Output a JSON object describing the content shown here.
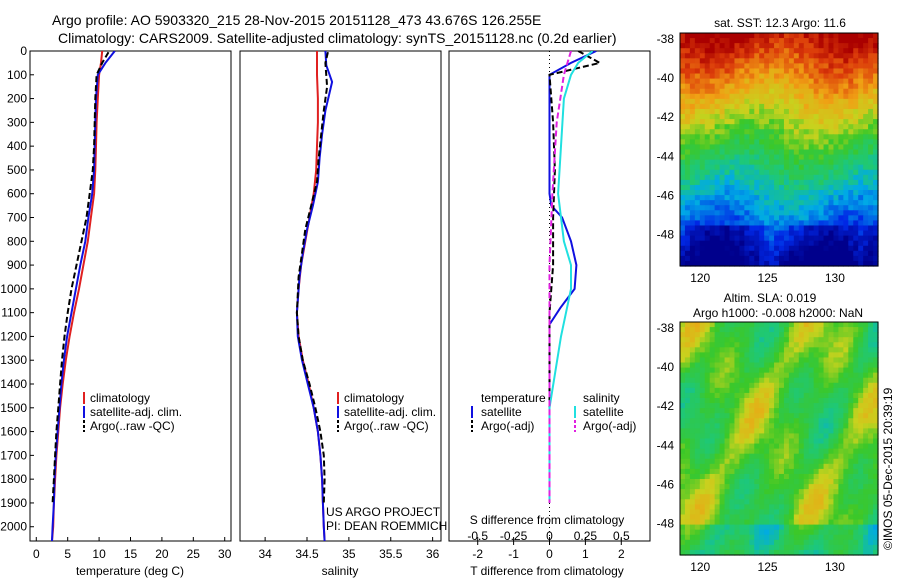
{
  "header": {
    "line1": "Argo profile: AO 5903320_215 28-Nov-2015 20151128_473 43.676S 126.255E",
    "line2": "Climatology: CARS2009. Satellite-adjusted climatology: synTS_20151128.nc (0.2d earlier)"
  },
  "colors": {
    "climatology": "#e02020",
    "satellite": "#1010e0",
    "argo": "#000000",
    "satellite_salinity": "#20e0e0",
    "argo_salinity": "#e020e0"
  },
  "chart_data": [
    {
      "id": "temperature",
      "type": "line",
      "xlabel": "temperature (deg C)",
      "ylabel": "",
      "xlim": [
        -1,
        31
      ],
      "ylim": [
        2060,
        0
      ],
      "xticks": [
        0,
        5,
        10,
        15,
        20,
        25,
        30
      ],
      "yticks": [
        0,
        100,
        200,
        300,
        400,
        500,
        600,
        700,
        800,
        900,
        1000,
        1100,
        1200,
        1300,
        1400,
        1500,
        1600,
        1700,
        1800,
        1900,
        2000
      ],
      "legend": [
        "climatology",
        "satellite-adj. clim.",
        "Argo(..raw -QC)"
      ],
      "series": [
        {
          "name": "climatology",
          "style": "solid",
          "color": "#e02020",
          "x": [
            10.5,
            10.3,
            10.0,
            9.8,
            9.6,
            9.5,
            9.4,
            9.2,
            8.7,
            8.2,
            7.5,
            6.8,
            6.0,
            5.3,
            4.7,
            4.2,
            3.8,
            3.5,
            3.2,
            3.0,
            2.8,
            2.7,
            2.6,
            2.5
          ],
          "y": [
            0,
            50,
            100,
            200,
            300,
            400,
            500,
            600,
            700,
            800,
            900,
            1000,
            1100,
            1200,
            1300,
            1400,
            1500,
            1600,
            1700,
            1800,
            1900,
            2000,
            2030,
            2060
          ]
        },
        {
          "name": "satellite-adj. clim.",
          "style": "solid",
          "color": "#1010e0",
          "x": [
            12.5,
            11.0,
            9.8,
            9.5,
            9.4,
            9.3,
            9.2,
            8.9,
            8.3,
            7.8,
            7.0,
            6.3,
            5.6,
            4.9,
            4.4,
            4.0,
            3.7,
            3.4,
            3.1,
            2.9,
            2.8,
            2.6,
            2.5
          ],
          "y": [
            0,
            50,
            100,
            200,
            300,
            400,
            500,
            600,
            700,
            800,
            900,
            1000,
            1100,
            1200,
            1300,
            1400,
            1500,
            1600,
            1700,
            1800,
            1900,
            2000,
            2060
          ]
        },
        {
          "name": "Argo(..raw -QC)",
          "style": "dashed",
          "color": "#000000",
          "x": [
            11.5,
            10.5,
            9.6,
            9.4,
            9.3,
            9.2,
            9.0,
            8.5,
            8.0,
            7.2,
            6.4,
            5.6,
            5.0,
            4.5,
            4.1,
            3.8,
            3.5,
            3.2,
            3.0,
            2.8,
            2.6
          ],
          "y": [
            5,
            50,
            100,
            200,
            300,
            400,
            500,
            600,
            700,
            800,
            900,
            1000,
            1100,
            1200,
            1300,
            1400,
            1500,
            1600,
            1700,
            1800,
            1900
          ]
        }
      ]
    },
    {
      "id": "salinity",
      "type": "line",
      "xlabel": "salinity",
      "ylabel": "",
      "xlim": [
        33.7,
        36.1
      ],
      "ylim": [
        2060,
        0
      ],
      "xticks": [
        34,
        34.5,
        35,
        35.5,
        36
      ],
      "legend": [
        "climatology",
        "satellite-adj. clim.",
        "Argo(..raw -QC)"
      ],
      "series": [
        {
          "name": "climatology",
          "style": "solid",
          "color": "#e02020",
          "x": [
            34.62,
            34.62,
            34.63,
            34.63,
            34.62,
            34.61,
            34.58,
            34.53,
            34.48,
            34.43,
            34.4,
            34.38,
            34.4,
            34.45,
            34.52,
            34.58,
            34.63,
            34.66,
            34.68,
            34.69,
            34.7,
            34.71
          ],
          "y": [
            0,
            100,
            200,
            300,
            400,
            500,
            600,
            700,
            800,
            900,
            1000,
            1100,
            1200,
            1300,
            1400,
            1500,
            1600,
            1700,
            1800,
            1900,
            2000,
            2060
          ]
        },
        {
          "name": "satellite-adj. clim.",
          "style": "solid",
          "color": "#1010e0",
          "x": [
            34.72,
            34.73,
            34.8,
            34.72,
            34.68,
            34.65,
            34.63,
            34.57,
            34.5,
            34.45,
            34.41,
            34.38,
            34.39,
            34.44,
            34.51,
            34.58,
            34.63,
            34.66,
            34.68,
            34.69,
            34.7,
            34.71
          ],
          "y": [
            0,
            60,
            130,
            250,
            350,
            450,
            550,
            650,
            750,
            850,
            950,
            1100,
            1200,
            1300,
            1400,
            1500,
            1600,
            1700,
            1800,
            1900,
            2000,
            2060
          ]
        },
        {
          "name": "Argo(..raw -QC)",
          "style": "dashed",
          "color": "#000000",
          "x": [
            34.75,
            34.72,
            34.74,
            34.7,
            34.67,
            34.64,
            34.62,
            34.55,
            34.48,
            34.44,
            34.4,
            34.38,
            34.4,
            34.45,
            34.53,
            34.6,
            34.66,
            34.7,
            34.71,
            34.7
          ],
          "y": [
            5,
            50,
            150,
            250,
            350,
            450,
            550,
            650,
            750,
            850,
            950,
            1100,
            1200,
            1300,
            1400,
            1500,
            1600,
            1700,
            1800,
            1900
          ]
        }
      ],
      "annotations": [
        "US ARGO PROJECT",
        "PI: DEAN ROEMMICH"
      ]
    },
    {
      "id": "difference",
      "type": "line",
      "xlabel": "T difference from climatology",
      "x2label": "S difference from climatology",
      "xlim": [
        -2.8,
        2.8
      ],
      "x2lim": [
        -0.7,
        0.7
      ],
      "ylim": [
        2060,
        0
      ],
      "xticks": [
        -2,
        -1,
        0,
        1,
        2
      ],
      "x2ticks": [
        "-0.5",
        "-0.25",
        "0",
        "0.25",
        "0.5"
      ],
      "legend_groups": [
        {
          "title": "temperature",
          "items": [
            "satellite",
            "Argo(-adj)"
          ]
        },
        {
          "title": "salinity",
          "items": [
            "satellite",
            "Argo(-adj)"
          ]
        }
      ],
      "series": [
        {
          "name": "temperature satellite",
          "style": "solid",
          "color": "#1010e0",
          "axis": "T",
          "x": [
            1.3,
            0.6,
            0.0,
            0.0,
            0.0,
            0.0,
            0.05,
            0.35,
            0.6,
            0.75,
            0.7,
            0.3,
            0.0,
            0.0,
            0.0,
            0.0,
            0.0
          ],
          "y": [
            0,
            50,
            100,
            300,
            500,
            600,
            650,
            700,
            800,
            900,
            1000,
            1080,
            1150,
            1300,
            1500,
            1800,
            1900
          ]
        },
        {
          "name": "temperature Argo(-adj)",
          "style": "dashed",
          "color": "#000000",
          "axis": "T",
          "x": [
            0.8,
            1.4,
            0.0,
            0.1,
            0.15,
            0.1,
            0.1,
            0.0,
            0.0,
            0.0
          ],
          "y": [
            0,
            50,
            100,
            300,
            500,
            700,
            900,
            1100,
            1500,
            1900
          ]
        },
        {
          "name": "salinity satellite",
          "style": "solid",
          "color": "#20e0e0",
          "axis": "S",
          "x": [
            0.3,
            0.2,
            0.15,
            0.1,
            0.08,
            0.06,
            0.08,
            0.1,
            0.15,
            0.15,
            0.08,
            0.0,
            0.0,
            0.0
          ],
          "y": [
            0,
            50,
            100,
            200,
            400,
            600,
            700,
            800,
            900,
            1000,
            1200,
            1500,
            1800,
            1900
          ]
        },
        {
          "name": "salinity Argo(-adj)",
          "style": "dashed",
          "color": "#e020e0",
          "axis": "S",
          "x": [
            0.15,
            0.1,
            0.05,
            0.02,
            0.0,
            0.0,
            0.0,
            0.0
          ],
          "y": [
            0,
            100,
            300,
            600,
            900,
            1200,
            1500,
            1900
          ]
        }
      ]
    },
    {
      "id": "sst_map",
      "type": "heatmap",
      "title": "sat. SST: 12.3 Argo: 11.6",
      "xticks": [
        120,
        125,
        130
      ],
      "yticks": [
        -38,
        -40,
        -42,
        -44,
        -46,
        -48
      ],
      "marker": {
        "lon": 126.255,
        "lat": -43.676
      }
    },
    {
      "id": "sla_map",
      "type": "heatmap",
      "title": "Altim. SLA: 0.019",
      "subtitle": "Argo h1000: -0.008 h2000: NaN",
      "xticks": [
        120,
        125,
        130
      ],
      "yticks": [
        -38,
        -40,
        -42,
        -44,
        -46,
        -48
      ],
      "marker": {
        "lon": 126.255,
        "lat": -43.676
      }
    }
  ],
  "panel_labels": {
    "temp_xlabel": "temperature (deg C)",
    "sal_xlabel": "salinity",
    "diff_xlabel": "T difference from climatology",
    "diff_x2label": "S difference from climatology",
    "legend_clim": "climatology",
    "legend_sat": "satellite-adj. clim.",
    "legend_argo": "Argo(..raw -QC)",
    "legend_temperature": "temperature",
    "legend_salinity": "salinity",
    "legend_satellite": "satellite",
    "legend_argo_adj": "Argo(-adj)",
    "annot1": "US ARGO PROJECT",
    "annot2": "PI: DEAN ROEMMICH",
    "sst_title": "sat. SST: 12.3 Argo: 11.6",
    "sla_title": "Altim. SLA: 0.019",
    "sla_subtitle": "Argo h1000: -0.008 h2000: NaN",
    "credit": "©IMOS 05-Dec-2015 20:39:19"
  }
}
